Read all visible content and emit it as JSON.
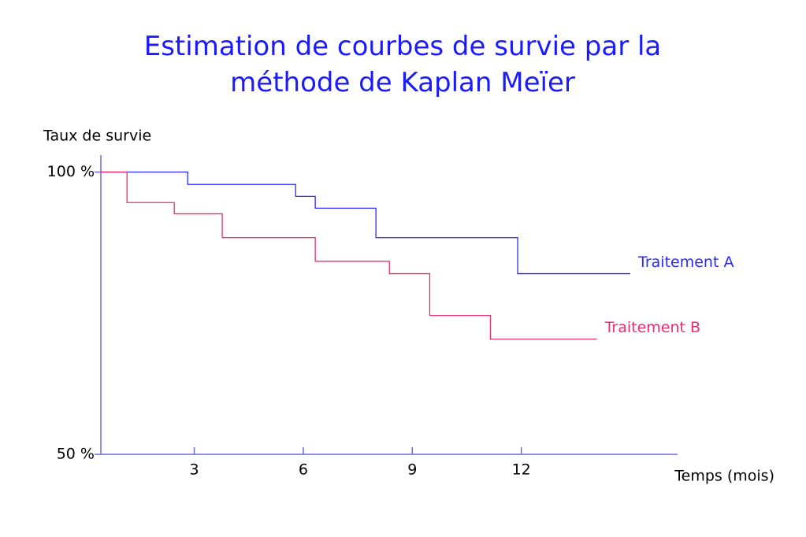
{
  "chart_data": {
    "type": "step",
    "title": "Estimation de courbes de survie par la méthode de Kaplan Meïer",
    "y_label": "Taux de survie",
    "x_label": "Temps (mois)",
    "series": [
      {
        "name": "Traitement A",
        "color": "#2a2aff",
        "x": [
          0.43,
          2.82,
          5.79,
          6.33,
          8.0,
          11.9,
          15.0
        ],
        "values": [
          100,
          97.8,
          95.7,
          93.6,
          88.4,
          82.0,
          82.0
        ]
      },
      {
        "name": "Traitement B",
        "color": "#ee2b6c",
        "x": [
          0.43,
          1.15,
          2.45,
          3.77,
          6.33,
          8.37,
          9.48,
          11.15,
          14.08
        ],
        "values": [
          100,
          94.6,
          92.6,
          88.4,
          84.2,
          82.0,
          74.6,
          70.4,
          70.4
        ]
      }
    ],
    "xlim": [
      0.43,
      16.3
    ],
    "xticks": [
      3,
      6,
      9,
      12
    ],
    "ylim": [
      50,
      103
    ],
    "yticks": [
      {
        "value": 100,
        "label": "100 %"
      },
      {
        "value": 50,
        "label": "50 %"
      }
    ]
  }
}
